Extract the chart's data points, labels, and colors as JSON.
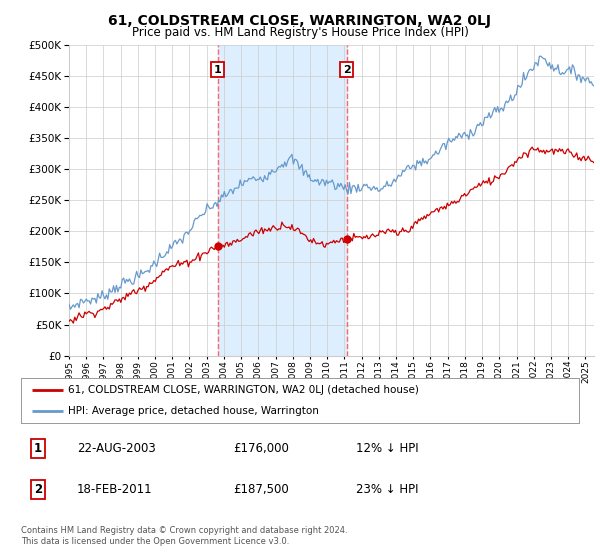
{
  "title": "61, COLDSTREAM CLOSE, WARRINGTON, WA2 0LJ",
  "subtitle": "Price paid vs. HM Land Registry's House Price Index (HPI)",
  "ylim": [
    0,
    500000
  ],
  "yticks": [
    0,
    50000,
    100000,
    150000,
    200000,
    250000,
    300000,
    350000,
    400000,
    450000,
    500000
  ],
  "sale1_date": 2003.64,
  "sale1_price": 176000,
  "sale2_date": 2011.13,
  "sale2_price": 187500,
  "sale_color": "#cc0000",
  "hpi_color": "#6699cc",
  "shading_color": "#ddeeff",
  "vline_color": "#ff6666",
  "legend_label_sale": "61, COLDSTREAM CLOSE, WARRINGTON, WA2 0LJ (detached house)",
  "legend_label_hpi": "HPI: Average price, detached house, Warrington",
  "annotation1": [
    "1",
    "22-AUG-2003",
    "£176,000",
    "12% ↓ HPI"
  ],
  "annotation2": [
    "2",
    "18-FEB-2011",
    "£187,500",
    "23% ↓ HPI"
  ],
  "footer": "Contains HM Land Registry data © Crown copyright and database right 2024.\nThis data is licensed under the Open Government Licence v3.0.",
  "background_color": "#ffffff",
  "grid_color": "#cccccc",
  "xlim_start": 1995,
  "xlim_end": 2025.5
}
